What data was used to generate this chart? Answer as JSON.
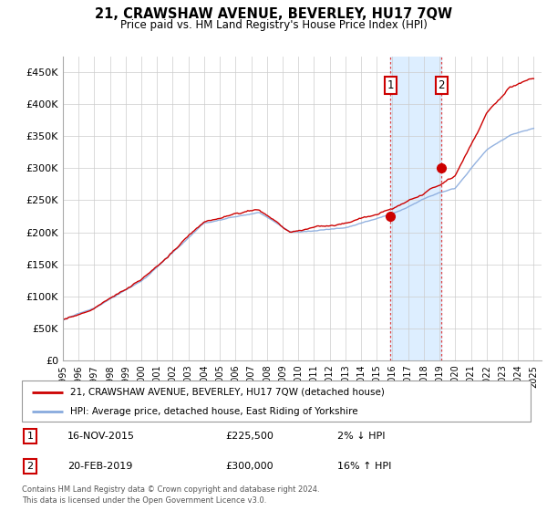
{
  "title": "21, CRAWSHAW AVENUE, BEVERLEY, HU17 7QW",
  "subtitle": "Price paid vs. HM Land Registry's House Price Index (HPI)",
  "ylabel_ticks": [
    "£0",
    "£50K",
    "£100K",
    "£150K",
    "£200K",
    "£250K",
    "£300K",
    "£350K",
    "£400K",
    "£450K"
  ],
  "ytick_values": [
    0,
    50000,
    100000,
    150000,
    200000,
    250000,
    300000,
    350000,
    400000,
    450000
  ],
  "ylim": [
    0,
    475000
  ],
  "xlim_min": 1995.0,
  "xlim_max": 2025.5,
  "hpi_color": "#88aadd",
  "price_color": "#cc0000",
  "marker_color": "#cc0000",
  "shade_color": "#ddeeff",
  "transaction1_x": 2015.88,
  "transaction1_y": 225500,
  "transaction2_x": 2019.13,
  "transaction2_y": 300000,
  "legend_line1": "21, CRAWSHAW AVENUE, BEVERLEY, HU17 7QW (detached house)",
  "legend_line2": "HPI: Average price, detached house, East Riding of Yorkshire",
  "table_row1_num": "1",
  "table_row1_date": "16-NOV-2015",
  "table_row1_price": "£225,500",
  "table_row1_hpi": "2% ↓ HPI",
  "table_row2_num": "2",
  "table_row2_date": "20-FEB-2019",
  "table_row2_price": "£300,000",
  "table_row2_hpi": "16% ↑ HPI",
  "footer": "Contains HM Land Registry data © Crown copyright and database right 2024.\nThis data is licensed under the Open Government Licence v3.0.",
  "xtick_years": [
    1995,
    1996,
    1997,
    1998,
    1999,
    2000,
    2001,
    2002,
    2003,
    2004,
    2005,
    2006,
    2007,
    2008,
    2009,
    2010,
    2011,
    2012,
    2013,
    2014,
    2015,
    2016,
    2017,
    2018,
    2019,
    2020,
    2021,
    2022,
    2023,
    2024,
    2025
  ]
}
